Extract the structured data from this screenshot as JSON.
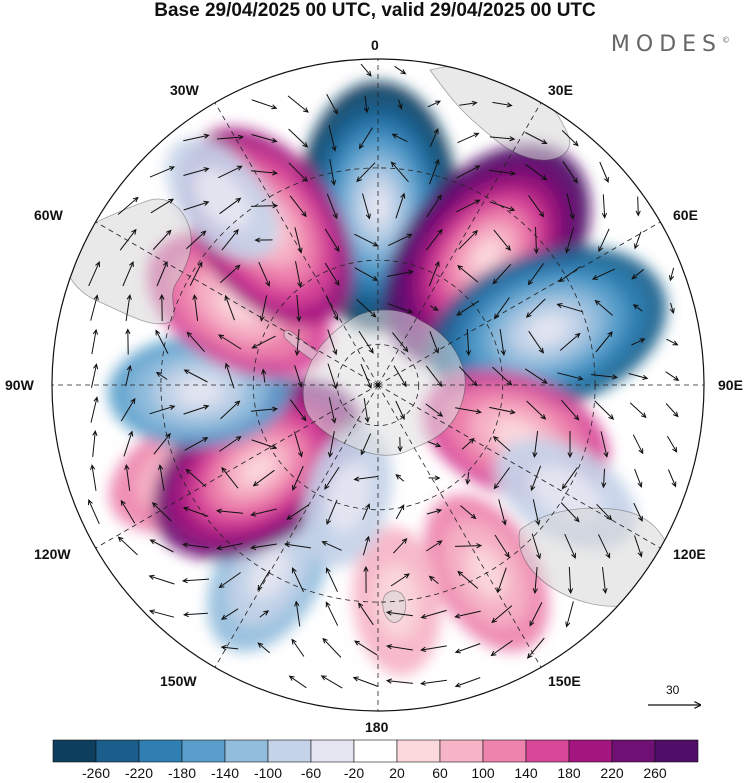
{
  "title": "Base 29/04/2025 00 UTC, valid 29/04/2025 00 UTC",
  "brand": "MODES",
  "brand_mark": "©",
  "longitude_labels": {
    "lon_0": "0",
    "lon_30e": "30E",
    "lon_60e": "60E",
    "lon_90e": "90E",
    "lon_120e": "120E",
    "lon_150e": "150E",
    "lon_180": "180",
    "lon_150w": "150W",
    "lon_120w": "120W",
    "lon_90w": "90W",
    "lon_60w": "60W",
    "lon_30w": "30W"
  },
  "reference_vector": {
    "label": "30"
  },
  "colorbar": {
    "colors": [
      "#0e3e5e",
      "#1a5e8c",
      "#2f7fb3",
      "#5a9fcc",
      "#93bddc",
      "#c4d3e8",
      "#e6e6f2",
      "#ffffff",
      "#fbd9dd",
      "#f6b4c6",
      "#ee84ae",
      "#d94799",
      "#a5157f",
      "#6f1174",
      "#4f0e67"
    ],
    "labels": [
      "-260",
      "-220",
      "-180",
      "-140",
      "-100",
      "-60",
      "-20",
      "20",
      "60",
      "100",
      "140",
      "180",
      "220",
      "260"
    ]
  },
  "map_data": {
    "projection": "south polar stereographic",
    "anomalies": [
      {
        "lon": 0,
        "lat": -48,
        "value": -250
      },
      {
        "lon": 40,
        "lat": -50,
        "value": 260
      },
      {
        "lon": 72,
        "lat": -48,
        "value": -240
      },
      {
        "lon": 110,
        "lat": -55,
        "value": 150
      },
      {
        "lon": 120,
        "lat": -40,
        "value": -80
      },
      {
        "lon": 150,
        "lat": -40,
        "value": 110
      },
      {
        "lon": 175,
        "lat": -40,
        "value": 70
      },
      {
        "lon": -150,
        "lat": -40,
        "value": -110
      },
      {
        "lon": -115,
        "lat": -42,
        "value": 110
      },
      {
        "lon": -125,
        "lat": -55,
        "value": 220
      },
      {
        "lon": -92,
        "lat": -48,
        "value": -130
      },
      {
        "lon": -60,
        "lat": -52,
        "value": 160
      },
      {
        "lon": -35,
        "lat": -45,
        "value": 200
      },
      {
        "lon": -40,
        "lat": -35,
        "value": -60
      },
      {
        "lon": -165,
        "lat": -62,
        "value": -60
      }
    ]
  }
}
